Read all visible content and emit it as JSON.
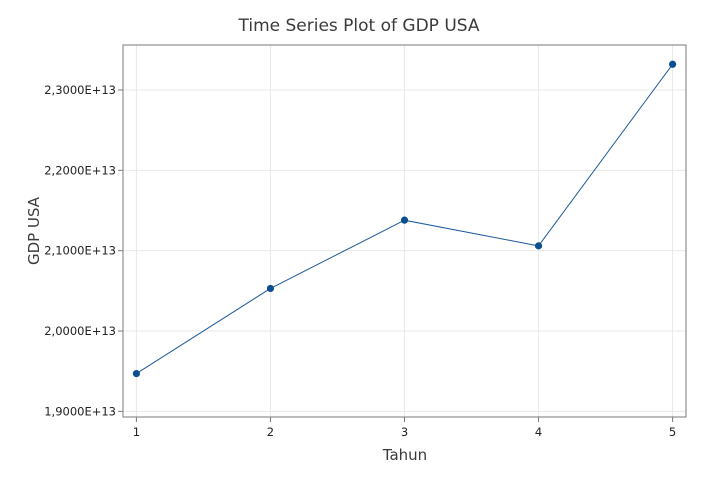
{
  "chart_data": {
    "type": "line",
    "title": "Time Series Plot of GDP USA",
    "xlabel": "Tahun",
    "ylabel": "GDP USA",
    "x": [
      1,
      2,
      3,
      4,
      5
    ],
    "y_tick_values": [
      19000000000000,
      20000000000000,
      21000000000000,
      22000000000000,
      23000000000000
    ],
    "y_tick_labels": [
      "1,9000E+13",
      "2,0000E+13",
      "2,1000E+13",
      "2,2000E+13",
      "2,3000E+13"
    ],
    "x_tick_labels": [
      "1",
      "2",
      "3",
      "4",
      "5"
    ],
    "series": [
      {
        "values": [
          19470000000000,
          20530000000000,
          21380000000000,
          21060000000000,
          23320000000000
        ]
      }
    ],
    "xlim": [
      0.9,
      5.1
    ],
    "ylim": [
      18930000000000,
      23560000000000
    ],
    "grid": true,
    "legend": "none",
    "colors": {
      "line": "#1f5a9c",
      "marker": "#0b4f8f",
      "grid": "#e9e9e9",
      "frame": "#7a7a7a"
    }
  }
}
